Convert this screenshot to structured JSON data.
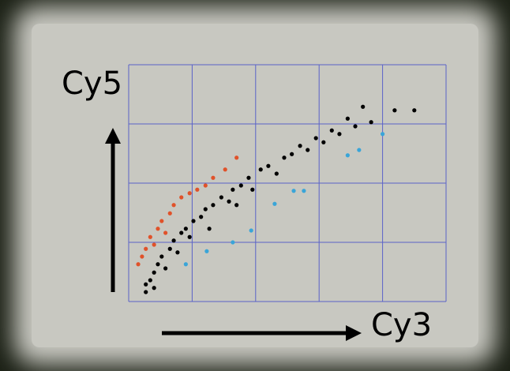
{
  "chart_data": {
    "type": "scatter",
    "x_label": "Cy3",
    "y_label": "Cy5",
    "xlim": [
      0,
      5
    ],
    "ylim": [
      0,
      4
    ],
    "xticks": [
      0,
      1,
      2,
      3,
      4,
      5
    ],
    "yticks": [
      0,
      1,
      2,
      3,
      4
    ],
    "grid": true,
    "grid_color": "#5a62c8",
    "series": [
      {
        "color": "#000000",
        "x": [
          0.27,
          0.34,
          0.4,
          0.46,
          0.52,
          0.58,
          0.65,
          0.71,
          0.77,
          0.83,
          0.9,
          0.96,
          1.02,
          1.14,
          1.21,
          1.33,
          1.46,
          1.58,
          1.64,
          1.77,
          1.89,
          1.95,
          2.08,
          2.2,
          2.33,
          2.45,
          2.57,
          2.7,
          2.82,
          2.95,
          3.07,
          3.2,
          3.32,
          3.45,
          3.57,
          3.69,
          3.82,
          4.19,
          4.5,
          0.27,
          0.4,
          1.27,
          1.7
        ],
        "values": [
          0.16,
          0.36,
          0.49,
          0.63,
          0.76,
          0.56,
          0.89,
          1.03,
          0.83,
          1.16,
          1.23,
          1.09,
          1.36,
          1.43,
          1.56,
          1.63,
          1.76,
          1.69,
          1.89,
          1.96,
          2.09,
          1.89,
          2.23,
          2.29,
          2.16,
          2.43,
          2.49,
          2.63,
          2.56,
          2.76,
          2.69,
          2.89,
          2.83,
          3.09,
          2.96,
          3.29,
          3.03,
          3.23,
          3.23,
          0.29,
          0.23,
          1.23,
          1.63
        ]
      },
      {
        "color": "#e0522a",
        "x": [
          0.15,
          0.21,
          0.27,
          0.34,
          0.4,
          0.46,
          0.52,
          0.58,
          0.65,
          0.71,
          0.83,
          0.96,
          1.08,
          1.21,
          1.33,
          1.52,
          1.7
        ],
        "values": [
          0.63,
          0.76,
          0.89,
          1.09,
          0.96,
          1.23,
          1.36,
          1.16,
          1.49,
          1.63,
          1.76,
          1.83,
          1.89,
          1.96,
          2.09,
          2.23,
          2.43
        ]
      },
      {
        "color": "#3aa5d8",
        "x": [
          0.9,
          1.23,
          1.64,
          1.93,
          2.3,
          2.6,
          2.76,
          3.45,
          3.63,
          4.0
        ],
        "values": [
          0.63,
          0.85,
          1.0,
          1.2,
          1.65,
          1.87,
          1.87,
          2.47,
          2.56,
          2.83
        ]
      }
    ]
  }
}
